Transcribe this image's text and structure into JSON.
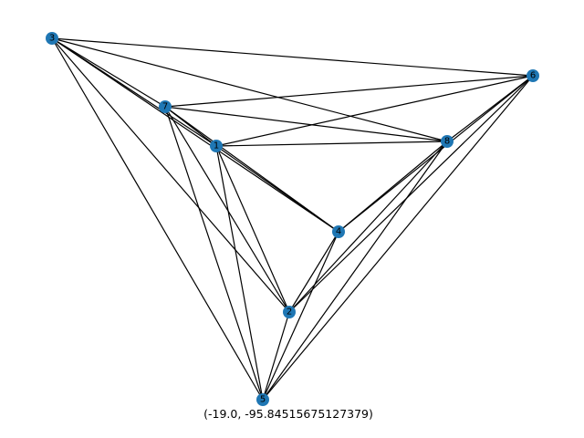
{
  "graph": {
    "node_color": "#1f77b4",
    "edge_color": "#000000",
    "nodes": [
      "1",
      "2",
      "3",
      "4",
      "5",
      "6",
      "7",
      "8"
    ],
    "edges": [
      [
        "3",
        "6"
      ],
      [
        "3",
        "7"
      ],
      [
        "3",
        "1"
      ],
      [
        "3",
        "8"
      ],
      [
        "3",
        "4"
      ],
      [
        "3",
        "2"
      ],
      [
        "3",
        "5"
      ],
      [
        "7",
        "6"
      ],
      [
        "7",
        "1"
      ],
      [
        "7",
        "8"
      ],
      [
        "7",
        "4"
      ],
      [
        "7",
        "2"
      ],
      [
        "7",
        "5"
      ],
      [
        "1",
        "6"
      ],
      [
        "1",
        "8"
      ],
      [
        "1",
        "4"
      ],
      [
        "1",
        "2"
      ],
      [
        "1",
        "5"
      ],
      [
        "6",
        "8"
      ],
      [
        "6",
        "4"
      ],
      [
        "6",
        "2"
      ],
      [
        "6",
        "5"
      ],
      [
        "8",
        "4"
      ],
      [
        "8",
        "2"
      ],
      [
        "8",
        "5"
      ],
      [
        "4",
        "2"
      ],
      [
        "4",
        "5"
      ],
      [
        "2",
        "5"
      ]
    ]
  },
  "status": {
    "coordinate_readout": "(-19.0, -95.84515675127379)"
  }
}
